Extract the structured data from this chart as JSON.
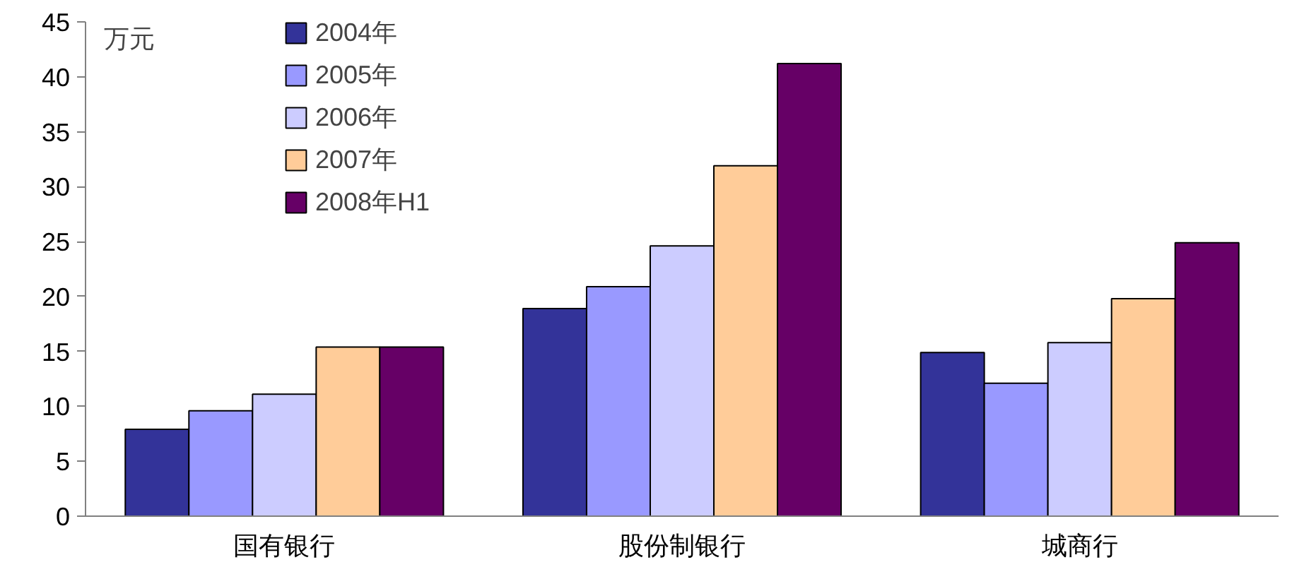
{
  "chart_data": {
    "type": "bar",
    "ylabel": "万元",
    "categories": [
      "国有银行",
      "股份制银行",
      "城商行"
    ],
    "series": [
      {
        "name": "2004年",
        "color": "#333399",
        "values": [
          7.9,
          18.9,
          14.9
        ]
      },
      {
        "name": "2005年",
        "color": "#9999ff",
        "values": [
          9.6,
          20.9,
          12.1
        ]
      },
      {
        "name": "2006年",
        "color": "#ccccff",
        "values": [
          11.1,
          24.6,
          15.8
        ]
      },
      {
        "name": "2007年",
        "color": "#ffcc99",
        "values": [
          15.4,
          31.9,
          19.8
        ]
      },
      {
        "name": "2008年H1",
        "color": "#660066",
        "values": [
          15.4,
          41.2,
          24.9
        ]
      }
    ],
    "ylim": [
      0,
      45
    ],
    "yticks": [
      0,
      5,
      10,
      15,
      20,
      25,
      30,
      35,
      40,
      45
    ],
    "grid": false,
    "legend": "top left"
  }
}
